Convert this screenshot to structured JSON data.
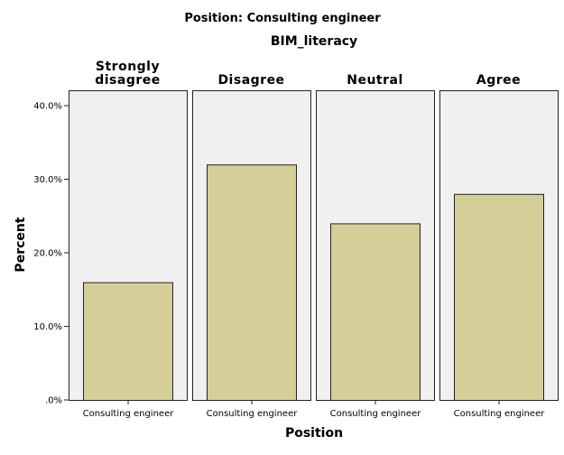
{
  "chart_data": {
    "type": "bar",
    "title": "Position: Consulting engineer",
    "facet_title": "BIM_literacy",
    "xlabel": "Position",
    "ylabel": "Percent",
    "ylim": [
      0,
      40
    ],
    "y_ticks": [
      0,
      10,
      20,
      30,
      40
    ],
    "y_tick_labels": [
      ".0%",
      "10.0%",
      "20.0%",
      "30.0%",
      "40.0%"
    ],
    "grid": false,
    "colors": {
      "bar_fill": "#d4cf98",
      "bar_stroke": "#222222",
      "panel_bg": "#f0f0f0",
      "panel_border": "#222222"
    },
    "panels": [
      {
        "label_lines": [
          "Strongly",
          "disagree"
        ],
        "category": "Consulting engineer",
        "value": 16
      },
      {
        "label_lines": [
          "Disagree"
        ],
        "category": "Consulting engineer",
        "value": 32
      },
      {
        "label_lines": [
          "Neutral"
        ],
        "category": "Consulting engineer",
        "value": 24
      },
      {
        "label_lines": [
          "Agree"
        ],
        "category": "Consulting engineer",
        "value": 28
      }
    ]
  }
}
